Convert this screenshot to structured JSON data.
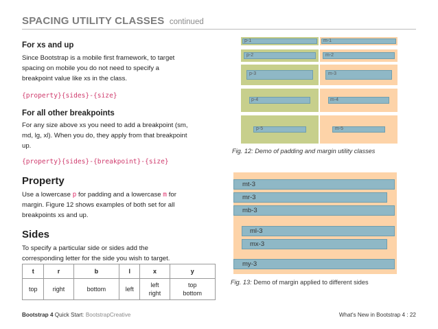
{
  "header": {
    "title": "SPACING UTILITY CLASSES",
    "subtitle": "continued"
  },
  "xs": {
    "heading": "For xs and up",
    "body": [
      "Since Bootstrap is a mobile first framework, to target",
      "spacing on mobile you do not need to specify a",
      "breakpoint value like xs in the class."
    ],
    "code": "{property}{sides}-{size}"
  },
  "other": {
    "heading": "For all other breakpoints",
    "body": [
      "For any size above xs you need to add a breakpoint (sm,",
      "md, lg, xl). When you do, they apply from that breakpoint",
      "up."
    ],
    "code": "{property}{sides}-{breakpoint}-{size}"
  },
  "property": {
    "heading": "Property",
    "line1_before": "Use a lowercase ",
    "p_letter": "p",
    "line1_mid": " for padding and a lowercase ",
    "m_letter": "m",
    "line1_after": " for",
    "body": [
      "margin. Figure 12 shows examples of both set for all",
      "breakpoints xs and up."
    ]
  },
  "sides": {
    "heading": "Sides",
    "body": [
      "To specify a particular side or sides add the",
      "corresponding letter for the side you wish to target."
    ]
  },
  "table": {
    "headers": [
      "t",
      "r",
      "b",
      "l",
      "x",
      "y"
    ],
    "cells": [
      [
        "top"
      ],
      [
        "right"
      ],
      [
        "bottom"
      ],
      [
        "left"
      ],
      [
        "left",
        "right"
      ],
      [
        "top",
        "bottom"
      ]
    ]
  },
  "fig12": {
    "caption_prefix": "Fig. 12:",
    "caption_text": "Demo of padding and margin utility classes",
    "padding_labels": [
      "p-1",
      "p-2",
      "p-3",
      "p-4",
      "p-5"
    ],
    "margin_labels": [
      "m-1",
      "m-2",
      "m-3",
      "m-4",
      "m-5"
    ]
  },
  "fig13": {
    "caption_prefix": "Fig. 13:",
    "caption_text": "Demo of margin applied to different sides",
    "labels": [
      "mt-3",
      "mr-3",
      "mb-3",
      "ml-3",
      "mx-3",
      "my-3"
    ]
  },
  "footer": {
    "left_bold": "Bootstrap 4",
    "left_mid": "Quick Start",
    "left_light": ": BootstrapCreative",
    "right": "What's New in Bootstrap 4 : 22"
  },
  "colors": {
    "green": "#c7cf8c",
    "peach": "#fdd3a8",
    "blue": "#8fb8c6",
    "blue_border": "#6f9eae",
    "pink": "#cf3a6c"
  }
}
